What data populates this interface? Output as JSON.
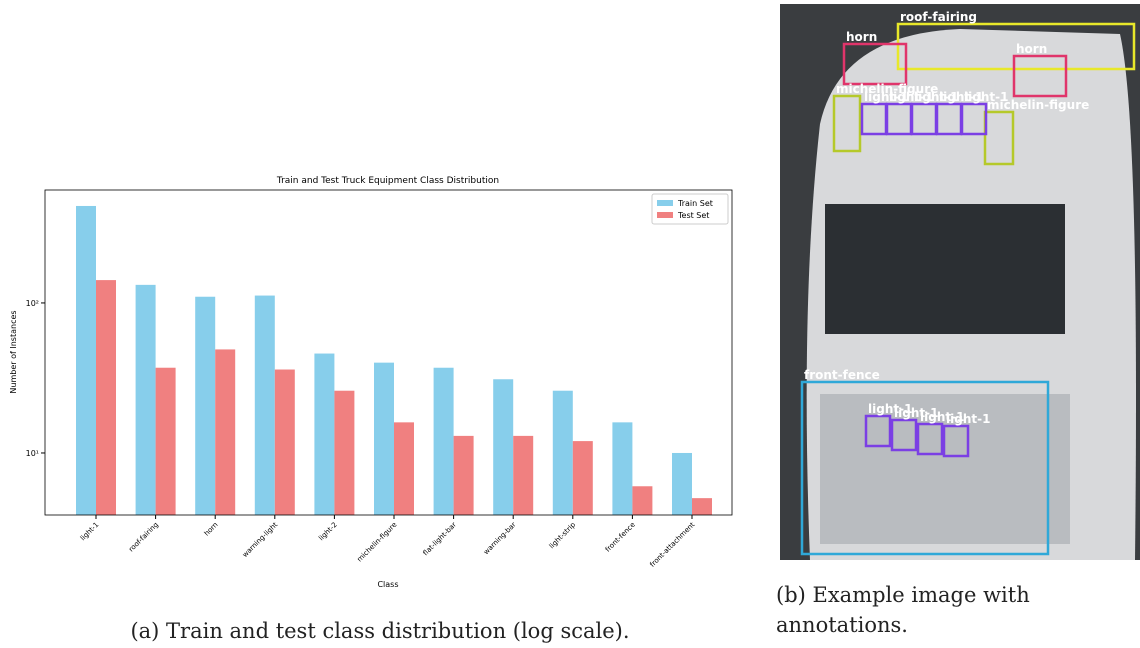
{
  "chart_data": {
    "type": "bar",
    "title": "Train and Test Truck Equipment Class Distribution",
    "x_label": "Class",
    "y_label": "Number of Instances",
    "categories": [
      "light-1",
      "roof-fairing",
      "horn",
      "warning-light",
      "light-2",
      "michelin-figure",
      "flat-light-bar",
      "warning-bar",
      "light-strip",
      "front-fence",
      "front-attachment"
    ],
    "series": [
      {
        "name": "Train Set",
        "color": "#87ceeb",
        "values": [
          443,
          132,
          110,
          112,
          46,
          40,
          37,
          31,
          26,
          16,
          10
        ]
      },
      {
        "name": "Test Set",
        "color": "#f08080",
        "values": [
          142,
          37,
          49,
          36,
          26,
          16,
          13,
          13,
          12,
          6,
          5
        ]
      }
    ],
    "log_scale": true,
    "ylim": [
      3.86,
      566
    ],
    "yticks": [
      {
        "value": 10,
        "label": "10¹"
      },
      {
        "value": 100,
        "label": "10²"
      }
    ],
    "legend": "upper right"
  },
  "captions": {
    "a": "(a) Train and test class distribution (log scale).",
    "b": "(b) Example image with annotations."
  },
  "image": {
    "annotations": [
      "roof-fairing",
      "horn",
      "horn",
      "michelin-figure",
      "michelin-figure",
      "light-1",
      "light-1",
      "light-1",
      "light-1",
      "light-1",
      "front-fence",
      "light-1",
      "light-1",
      "light-1",
      "light-1"
    ]
  }
}
